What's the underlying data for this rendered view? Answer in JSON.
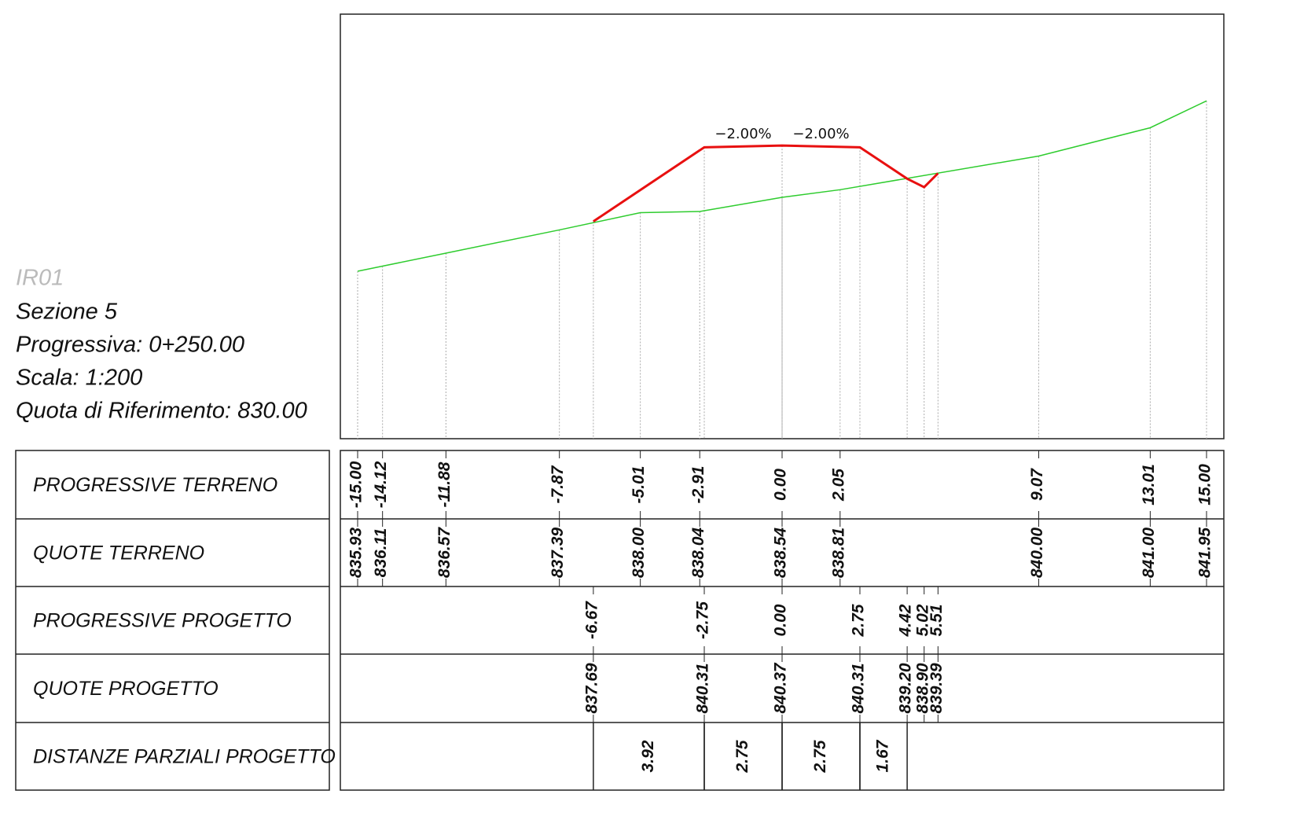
{
  "info": [
    "IR01",
    "Sezione 5",
    "Progressiva: 0+250.00",
    "Scala: 1:200",
    "Quota di Riferimento: 830.00"
  ],
  "rows": [
    "PROGRESSIVE TERRENO",
    "QUOTE TERRENO",
    "PROGRESSIVE PROGETTO",
    "QUOTE PROGETTO",
    "DISTANZE PARZIALI PROGETTO"
  ],
  "terrain": [
    {
      "prog": "-15.00",
      "quota": "835.93"
    },
    {
      "prog": "-14.12",
      "quota": "836.11"
    },
    {
      "prog": "-11.88",
      "quota": "836.57"
    },
    {
      "prog": "-7.87",
      "quota": "837.39"
    },
    {
      "prog": "-5.01",
      "quota": "838.00"
    },
    {
      "prog": "-2.91",
      "quota": "838.04"
    },
    {
      "prog": "0.00",
      "quota": "838.54"
    },
    {
      "prog": "2.05",
      "quota": "838.81"
    },
    {
      "prog": "9.07",
      "quota": "840.00"
    },
    {
      "prog": "13.01",
      "quota": "841.00"
    },
    {
      "prog": "15.00",
      "quota": "841.95"
    }
  ],
  "project": [
    {
      "prog": "-6.67",
      "quota": "837.69"
    },
    {
      "prog": "-2.75",
      "quota": "840.31"
    },
    {
      "prog": "0.00",
      "quota": "840.37"
    },
    {
      "prog": "2.75",
      "quota": "840.31"
    },
    {
      "prog": "4.42",
      "quota": "839.20"
    },
    {
      "prog": "5.02",
      "quota": "838.90"
    },
    {
      "prog": "5.51",
      "quota": "839.39"
    }
  ],
  "distances": [
    "3.92",
    "2.75",
    "2.75",
    "1.67"
  ],
  "slopes": [
    "−2.00%",
    "−2.00%"
  ]
}
